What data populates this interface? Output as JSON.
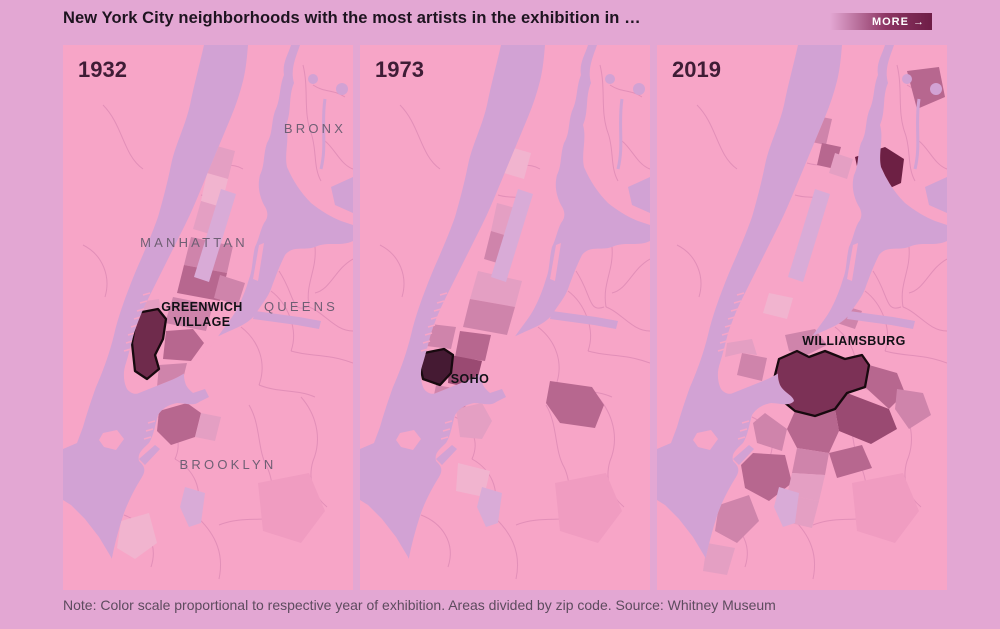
{
  "header": {
    "title": "New York City neighborhoods with the most artists in the exhibition in …",
    "more_label": "MORE →"
  },
  "panels": [
    {
      "year": "1932",
      "highlight": {
        "name": "Greenwich Village",
        "label_lines": [
          "GREENWICH",
          "VILLAGE"
        ]
      },
      "borough_labels": [
        "BRONX",
        "MANHATTAN",
        "QUEENS",
        "BROOKLYN"
      ]
    },
    {
      "year": "1973",
      "highlight": {
        "name": "SoHo",
        "label_lines": [
          "SOHO"
        ]
      },
      "borough_labels": []
    },
    {
      "year": "2019",
      "highlight": {
        "name": "Williamsburg",
        "label_lines": [
          "WILLIAMSBURG"
        ]
      },
      "borough_labels": []
    }
  ],
  "note": "Note: Color scale proportional to respective year of exhibition. Areas divided by zip code. Source: Whitney Museum",
  "colors": {
    "background": "#e3a7d3",
    "land": "#f7a5c7",
    "water": "#d2a2d4",
    "park": "#d9abd7",
    "scale_light": "#f1b4cf",
    "scale_2": "#e49fc3",
    "scale_3": "#cf84ab",
    "scale_4": "#b7678f",
    "scale_5": "#9a4a72",
    "scale_dark": "#6d2044",
    "highlight_1932": "#6f2b4c",
    "highlight_1973": "#451a33",
    "highlight_2019": "#7c3156",
    "highlight_outline": "#18090f"
  }
}
